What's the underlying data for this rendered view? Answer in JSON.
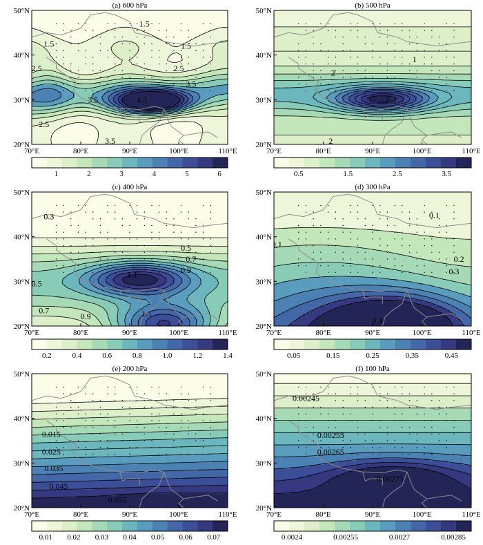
{
  "colors": {
    "ramp": [
      "#fcfde8",
      "#eef6d9",
      "#dcefc9",
      "#c4e6bb",
      "#a6d9b6",
      "#88cbb7",
      "#6cb6bd",
      "#5a9cbd",
      "#4c81b4",
      "#4467a8",
      "#3d4e99",
      "#36397f",
      "#242557"
    ],
    "contour_line": "#000000",
    "border_line": "#8c8c8c",
    "stipple": "#000000"
  },
  "chart_data": [
    {
      "type": "contour",
      "title": "(a) 600 hPa",
      "xlabel": "",
      "ylabel": "",
      "xlim": [
        70,
        110
      ],
      "ylim": [
        20,
        50
      ],
      "x_ticks": [
        70,
        80,
        90,
        100,
        110
      ],
      "x_tick_labels": [
        "70°E",
        "80°E",
        "90°E",
        "100°E",
        "110°E"
      ],
      "y_ticks": [
        20,
        30,
        40,
        50
      ],
      "y_tick_labels": [
        "20°N",
        "30°N",
        "40°N",
        "50°N"
      ],
      "colorbar_ticks": [
        1,
        2,
        3,
        4,
        5,
        6
      ],
      "colorbar_tick_labels": [
        "1",
        "2",
        "3",
        "4",
        "5",
        "6"
      ],
      "colorbar_range": [
        0.25,
        6.25
      ],
      "contour_labels": [
        {
          "text": "1.5",
          "x": 93,
          "y": 47
        },
        {
          "text": "1.5",
          "x": 73.5,
          "y": 42.5
        },
        {
          "text": "1.5",
          "x": 101.5,
          "y": 42
        },
        {
          "text": "2.5",
          "x": 71,
          "y": 37
        },
        {
          "text": "2.5",
          "x": 100,
          "y": 37
        },
        {
          "text": "3.5",
          "x": 102.5,
          "y": 33.5
        },
        {
          "text": "3.5",
          "x": 82.5,
          "y": 30
        },
        {
          "text": "4.5",
          "x": 92.5,
          "y": 30
        },
        {
          "text": "2.5",
          "x": 72.5,
          "y": 24.5
        },
        {
          "text": "3.5",
          "x": 86,
          "y": 20.8
        }
      ]
    },
    {
      "type": "contour",
      "title": "(b) 500 hPa",
      "xlabel": "",
      "ylabel": "",
      "xlim": [
        70,
        110
      ],
      "ylim": [
        20,
        50
      ],
      "x_ticks": [
        70,
        80,
        90,
        100,
        110
      ],
      "x_tick_labels": [
        "70°E",
        "80°E",
        "90°E",
        "100°E",
        "110°E"
      ],
      "y_ticks": [
        20,
        30,
        40,
        50
      ],
      "y_tick_labels": [
        "20°N",
        "30°N",
        "40°N",
        "50°N"
      ],
      "colorbar_ticks": [
        0.5,
        1.5,
        2.5,
        3.5
      ],
      "colorbar_tick_labels": [
        "0.5",
        "1.5",
        "2.5",
        "3.5"
      ],
      "colorbar_range": [
        0,
        4
      ],
      "contour_labels": [
        {
          "text": "1",
          "x": 98.5,
          "y": 39
        },
        {
          "text": "2",
          "x": 82,
          "y": 36
        },
        {
          "text": "3",
          "x": 93,
          "y": 30
        },
        {
          "text": "2",
          "x": 81.5,
          "y": 20.8
        }
      ]
    },
    {
      "type": "contour",
      "title": "(c) 400 hPa",
      "xlabel": "",
      "ylabel": "",
      "xlim": [
        70,
        110
      ],
      "ylim": [
        20,
        50
      ],
      "x_ticks": [
        70,
        80,
        90,
        100,
        110
      ],
      "x_tick_labels": [
        "70°E",
        "80°E",
        "90°E",
        "100°E",
        "110°E"
      ],
      "y_ticks": [
        20,
        30,
        40,
        50
      ],
      "y_tick_labels": [
        "20°N",
        "30°N",
        "40°N",
        "50°N"
      ],
      "colorbar_ticks": [
        0.2,
        0.4,
        0.6,
        0.8,
        1.0,
        1.2,
        1.4
      ],
      "colorbar_tick_labels": [
        "0.2",
        "0.4",
        "0.6",
        "0.8",
        "1.0",
        "1.2",
        "1.4"
      ],
      "colorbar_range": [
        0.1,
        1.4
      ],
      "contour_labels": [
        {
          "text": "0.3",
          "x": 73.5,
          "y": 44.5
        },
        {
          "text": "0.5",
          "x": 101.5,
          "y": 37.5
        },
        {
          "text": "0.7",
          "x": 102.5,
          "y": 35
        },
        {
          "text": "0.9",
          "x": 101.5,
          "y": 32.5
        },
        {
          "text": "1.1",
          "x": 90.5,
          "y": 31.5
        },
        {
          "text": "0.5",
          "x": 71,
          "y": 29.5
        },
        {
          "text": "0.7",
          "x": 72.5,
          "y": 23.5
        },
        {
          "text": "0.9",
          "x": 81,
          "y": 22.2
        },
        {
          "text": "1.1",
          "x": 93.5,
          "y": 22.8
        }
      ]
    },
    {
      "type": "contour",
      "title": "(d) 300 hPa",
      "xlabel": "",
      "ylabel": "",
      "xlim": [
        70,
        110
      ],
      "ylim": [
        20,
        50
      ],
      "x_ticks": [
        70,
        80,
        90,
        100,
        110
      ],
      "x_tick_labels": [
        "70°E",
        "80°E",
        "90°E",
        "100°E",
        "110°E"
      ],
      "y_ticks": [
        20,
        30,
        40,
        50
      ],
      "y_tick_labels": [
        "20°N",
        "30°N",
        "40°N",
        "50°N"
      ],
      "colorbar_ticks": [
        0.05,
        0.15,
        0.25,
        0.35,
        0.45
      ],
      "colorbar_tick_labels": [
        "0.05",
        "0.15",
        "0.25",
        "0.35",
        "0.45"
      ],
      "colorbar_range": [
        0,
        0.5
      ],
      "contour_labels": [
        {
          "text": "0.1",
          "x": 102.5,
          "y": 44.8
        },
        {
          "text": "0.1",
          "x": 70.6,
          "y": 38.3
        },
        {
          "text": "0.2",
          "x": 107.5,
          "y": 35
        },
        {
          "text": "0.3",
          "x": 106.5,
          "y": 32.2
        },
        {
          "text": "0.4",
          "x": 91,
          "y": 21.2
        }
      ]
    },
    {
      "type": "contour",
      "title": "(e) 200 hPa",
      "xlabel": "",
      "ylabel": "",
      "xlim": [
        70,
        110
      ],
      "ylim": [
        20,
        50
      ],
      "x_ticks": [
        70,
        80,
        90,
        100,
        110
      ],
      "x_tick_labels": [
        "70°E",
        "80°E",
        "90°E",
        "100°E",
        "110°E"
      ],
      "y_ticks": [
        20,
        30,
        40,
        50
      ],
      "y_tick_labels": [
        "20°N",
        "30°N",
        "40°N",
        "50°N"
      ],
      "colorbar_ticks": [
        0.01,
        0.02,
        0.03,
        0.04,
        0.05,
        0.06,
        0.07
      ],
      "colorbar_tick_labels": [
        "0.01",
        "0.02",
        "0.03",
        "0.04",
        "0.05",
        "0.06",
        "0.07"
      ],
      "colorbar_range": [
        0.005,
        0.075
      ],
      "contour_labels": [
        {
          "text": "0.015",
          "x": 74,
          "y": 36.5
        },
        {
          "text": "0.025",
          "x": 74,
          "y": 32.5
        },
        {
          "text": "0.035",
          "x": 74.5,
          "y": 28.8
        },
        {
          "text": "0.045",
          "x": 75.5,
          "y": 24.8
        },
        {
          "text": "0.055",
          "x": 87.5,
          "y": 21.8
        }
      ]
    },
    {
      "type": "contour",
      "title": "(f) 100 hPa",
      "xlabel": "",
      "ylabel": "",
      "xlim": [
        70,
        110
      ],
      "ylim": [
        20,
        50
      ],
      "x_ticks": [
        70,
        80,
        90,
        100,
        110
      ],
      "x_tick_labels": [
        "70°E",
        "80°E",
        "90°E",
        "100°E",
        "110°E"
      ],
      "y_ticks": [
        20,
        30,
        40,
        50
      ],
      "y_tick_labels": [
        "20°N",
        "30°N",
        "40°N",
        "50°N"
      ],
      "colorbar_ticks": [
        0.0024,
        0.00255,
        0.0027,
        0.00285
      ],
      "colorbar_tick_labels": [
        "0.0024",
        "0.00255",
        "0.0027",
        "0.00285"
      ],
      "colorbar_range": [
        0.00235,
        0.0029
      ],
      "contour_labels": [
        {
          "text": "0.00245",
          "x": 76.5,
          "y": 44.5
        },
        {
          "text": "0.00255",
          "x": 81.5,
          "y": 36.2
        },
        {
          "text": "0.00265",
          "x": 81.5,
          "y": 32.5
        },
        {
          "text": "0.00275",
          "x": 93.5,
          "y": 26.5
        }
      ]
    }
  ]
}
